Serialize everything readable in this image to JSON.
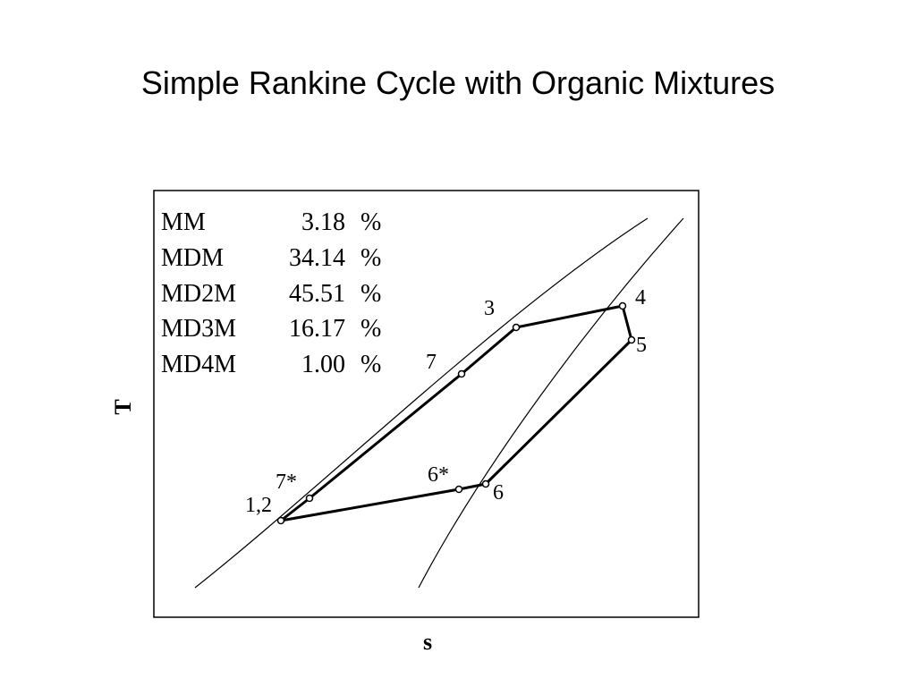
{
  "slide": {
    "title": "Simple Rankine Cycle with Organic Mixtures"
  },
  "diagram": {
    "y_axis_label": "T",
    "x_axis_label": "s",
    "composition": [
      {
        "name": "MM",
        "value": "3.18",
        "unit": "%"
      },
      {
        "name": "MDM",
        "value": "34.14",
        "unit": "%"
      },
      {
        "name": "MD2M",
        "value": "45.51",
        "unit": "%"
      },
      {
        "name": "MD3M",
        "value": "16.17",
        "unit": "%"
      },
      {
        "name": "MD4M",
        "value": "1.00",
        "unit": "%"
      }
    ],
    "state_points": {
      "p12": "1,2",
      "p3": "3",
      "p4": "4",
      "p5": "5",
      "p6": "6",
      "p6s": "6*",
      "p7": "7",
      "p7s": "7*"
    }
  },
  "colors": {
    "line": "#000000",
    "background": "#ffffff"
  }
}
